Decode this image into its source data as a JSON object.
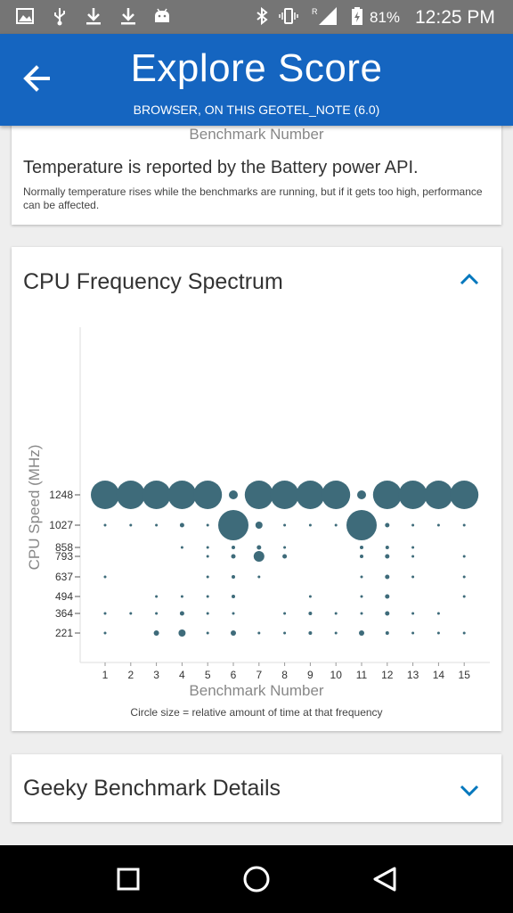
{
  "status_bar": {
    "battery_percent": "81%",
    "time": "12:25 PM",
    "notification_icons": [
      "image-icon",
      "usb-icon",
      "download-icon",
      "download-icon",
      "android-icon"
    ],
    "system_icons": [
      "bluetooth-icon",
      "vibrate-icon",
      "signal-icon",
      "battery-charging-icon"
    ]
  },
  "app_bar": {
    "title": "Explore Score",
    "subtitle": "BROWSER, ON THIS GEOTEL_NOTE (6.0)",
    "background_color": "#1565c0"
  },
  "temperature_card": {
    "previous_chart_xlabel": "Benchmark Number",
    "heading": "Temperature is reported by the Battery power API.",
    "note": "Normally temperature rises while the benchmarks are running, but if it gets too high, performance can be affected."
  },
  "cpu_card": {
    "title": "CPU Frequency Spectrum",
    "expanded": true,
    "accent_color": "#0277bd"
  },
  "chart_data": {
    "type": "scatter",
    "xlabel": "Benchmark Number",
    "ylabel": "CPU Speed (MHz)",
    "caption": "Circle size = relative amount of time at that frequency",
    "x_ticks": [
      1,
      2,
      3,
      4,
      5,
      6,
      7,
      8,
      9,
      10,
      11,
      12,
      13,
      14,
      15
    ],
    "y_ticks": [
      221,
      364,
      494,
      637,
      793,
      858,
      1027,
      1248
    ],
    "marker_color": "#3e6b7a",
    "points": [
      {
        "x": 1,
        "y": 1248,
        "size": 16
      },
      {
        "x": 1,
        "y": 1027,
        "size": 1.5
      },
      {
        "x": 1,
        "y": 637,
        "size": 1.5
      },
      {
        "x": 1,
        "y": 364,
        "size": 1.5
      },
      {
        "x": 1,
        "y": 221,
        "size": 1.5
      },
      {
        "x": 2,
        "y": 1248,
        "size": 16
      },
      {
        "x": 2,
        "y": 1027,
        "size": 1.5
      },
      {
        "x": 2,
        "y": 364,
        "size": 1.5
      },
      {
        "x": 3,
        "y": 1248,
        "size": 16
      },
      {
        "x": 3,
        "y": 1027,
        "size": 1.5
      },
      {
        "x": 3,
        "y": 494,
        "size": 1.5
      },
      {
        "x": 3,
        "y": 364,
        "size": 1.5
      },
      {
        "x": 3,
        "y": 221,
        "size": 3
      },
      {
        "x": 4,
        "y": 1248,
        "size": 16
      },
      {
        "x": 4,
        "y": 1027,
        "size": 2.5
      },
      {
        "x": 4,
        "y": 858,
        "size": 1.5
      },
      {
        "x": 4,
        "y": 494,
        "size": 1.5
      },
      {
        "x": 4,
        "y": 364,
        "size": 2.5
      },
      {
        "x": 4,
        "y": 221,
        "size": 4
      },
      {
        "x": 5,
        "y": 1248,
        "size": 16
      },
      {
        "x": 5,
        "y": 1027,
        "size": 1.5
      },
      {
        "x": 5,
        "y": 858,
        "size": 1.5
      },
      {
        "x": 5,
        "y": 793,
        "size": 1.5
      },
      {
        "x": 5,
        "y": 637,
        "size": 1.5
      },
      {
        "x": 5,
        "y": 494,
        "size": 1.5
      },
      {
        "x": 5,
        "y": 364,
        "size": 1.5
      },
      {
        "x": 5,
        "y": 221,
        "size": 1.5
      },
      {
        "x": 6,
        "y": 1248,
        "size": 5
      },
      {
        "x": 6,
        "y": 1027,
        "size": 17
      },
      {
        "x": 6,
        "y": 858,
        "size": 2
      },
      {
        "x": 6,
        "y": 793,
        "size": 2.5
      },
      {
        "x": 6,
        "y": 637,
        "size": 2
      },
      {
        "x": 6,
        "y": 494,
        "size": 2
      },
      {
        "x": 6,
        "y": 364,
        "size": 1.5
      },
      {
        "x": 6,
        "y": 221,
        "size": 3
      },
      {
        "x": 7,
        "y": 1248,
        "size": 16
      },
      {
        "x": 7,
        "y": 1027,
        "size": 4
      },
      {
        "x": 7,
        "y": 858,
        "size": 2.5
      },
      {
        "x": 7,
        "y": 793,
        "size": 6
      },
      {
        "x": 7,
        "y": 637,
        "size": 1.5
      },
      {
        "x": 7,
        "y": 221,
        "size": 1.5
      },
      {
        "x": 8,
        "y": 1248,
        "size": 16
      },
      {
        "x": 8,
        "y": 1027,
        "size": 1.5
      },
      {
        "x": 8,
        "y": 858,
        "size": 1.5
      },
      {
        "x": 8,
        "y": 793,
        "size": 2.5
      },
      {
        "x": 8,
        "y": 364,
        "size": 1.5
      },
      {
        "x": 8,
        "y": 221,
        "size": 1.5
      },
      {
        "x": 9,
        "y": 1248,
        "size": 16
      },
      {
        "x": 9,
        "y": 1027,
        "size": 1.5
      },
      {
        "x": 9,
        "y": 494,
        "size": 1.5
      },
      {
        "x": 9,
        "y": 364,
        "size": 2
      },
      {
        "x": 9,
        "y": 221,
        "size": 2
      },
      {
        "x": 10,
        "y": 1248,
        "size": 16
      },
      {
        "x": 10,
        "y": 1027,
        "size": 1.5
      },
      {
        "x": 10,
        "y": 364,
        "size": 1.5
      },
      {
        "x": 10,
        "y": 221,
        "size": 1.5
      },
      {
        "x": 11,
        "y": 1248,
        "size": 5
      },
      {
        "x": 11,
        "y": 1027,
        "size": 17
      },
      {
        "x": 11,
        "y": 858,
        "size": 2
      },
      {
        "x": 11,
        "y": 793,
        "size": 2
      },
      {
        "x": 11,
        "y": 637,
        "size": 1.5
      },
      {
        "x": 11,
        "y": 494,
        "size": 1.5
      },
      {
        "x": 11,
        "y": 364,
        "size": 1.5
      },
      {
        "x": 11,
        "y": 221,
        "size": 3
      },
      {
        "x": 12,
        "y": 1248,
        "size": 16
      },
      {
        "x": 12,
        "y": 1027,
        "size": 2.5
      },
      {
        "x": 12,
        "y": 858,
        "size": 2
      },
      {
        "x": 12,
        "y": 793,
        "size": 2.5
      },
      {
        "x": 12,
        "y": 637,
        "size": 2.5
      },
      {
        "x": 12,
        "y": 494,
        "size": 2.5
      },
      {
        "x": 12,
        "y": 364,
        "size": 2.5
      },
      {
        "x": 12,
        "y": 221,
        "size": 2
      },
      {
        "x": 13,
        "y": 1248,
        "size": 16
      },
      {
        "x": 13,
        "y": 1027,
        "size": 1.5
      },
      {
        "x": 13,
        "y": 858,
        "size": 1.5
      },
      {
        "x": 13,
        "y": 793,
        "size": 1.5
      },
      {
        "x": 13,
        "y": 637,
        "size": 1.5
      },
      {
        "x": 13,
        "y": 364,
        "size": 1.5
      },
      {
        "x": 13,
        "y": 221,
        "size": 1.5
      },
      {
        "x": 14,
        "y": 1248,
        "size": 16
      },
      {
        "x": 14,
        "y": 1027,
        "size": 1.5
      },
      {
        "x": 14,
        "y": 364,
        "size": 1.5
      },
      {
        "x": 14,
        "y": 221,
        "size": 1.5
      },
      {
        "x": 15,
        "y": 1248,
        "size": 16
      },
      {
        "x": 15,
        "y": 1027,
        "size": 1.5
      },
      {
        "x": 15,
        "y": 793,
        "size": 1.5
      },
      {
        "x": 15,
        "y": 637,
        "size": 1.5
      },
      {
        "x": 15,
        "y": 494,
        "size": 1.5
      },
      {
        "x": 15,
        "y": 221,
        "size": 1.5
      }
    ]
  },
  "geeky_card": {
    "title": "Geeky Benchmark Details",
    "expanded": false
  },
  "nav_bar": {
    "buttons": [
      "recents-square-icon",
      "home-circle-icon",
      "back-triangle-icon"
    ]
  }
}
